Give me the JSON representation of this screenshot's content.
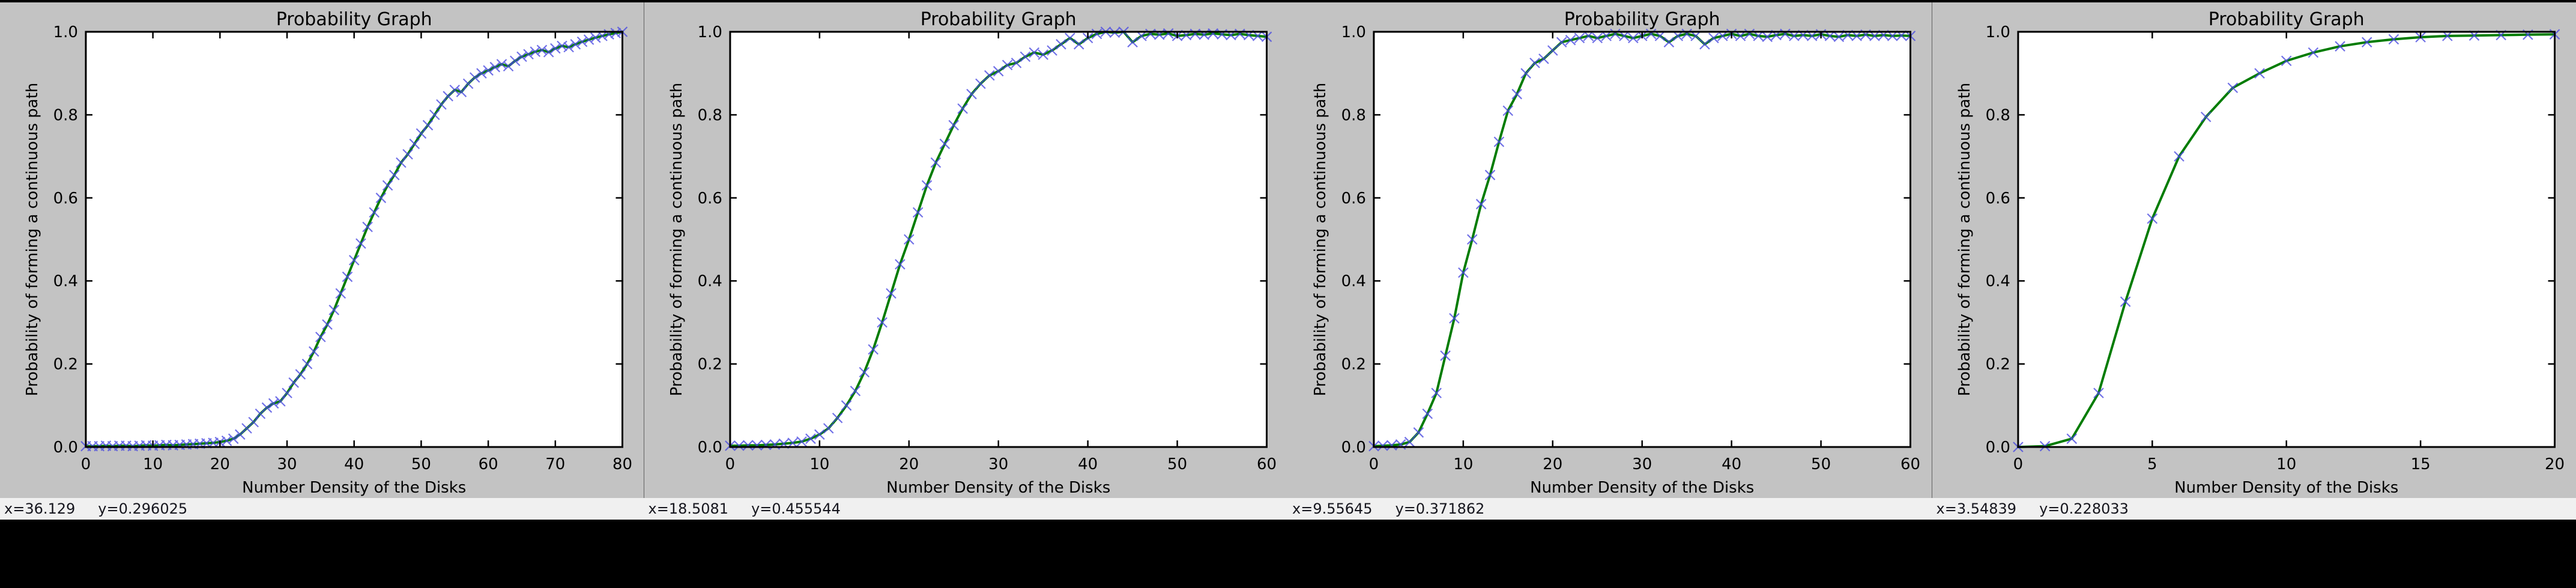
{
  "colors": {
    "figure_bg": "#c3c3c3",
    "plot_bg": "#ffffff",
    "axis": "#000000",
    "text": "#000000",
    "status_bg": "#f0f0f0",
    "status_text": "#15151d",
    "desktop_bg": "#000000"
  },
  "chart_data": [
    {
      "type": "line",
      "title": "Probability Graph",
      "xlabel": "Number Density of the Disks",
      "ylabel": "Probability of forming a continuous path",
      "xlim": [
        0,
        80
      ],
      "ylim": [
        0.0,
        1.0
      ],
      "xticks": [
        0,
        10,
        20,
        30,
        40,
        50,
        60,
        70,
        80
      ],
      "xticklabels": [
        "0",
        "10",
        "20",
        "30",
        "40",
        "50",
        "60",
        "70",
        "80"
      ],
      "yticks": [
        0.0,
        0.2,
        0.4,
        0.6,
        0.8,
        1.0
      ],
      "yticklabels": [
        "0.0",
        "0.2",
        "0.4",
        "0.6",
        "0.8",
        "1.0"
      ],
      "legend": "none",
      "grid": false,
      "line_color": "#007c00",
      "marker": "x",
      "marker_color": "#4848e0",
      "x_start": 0,
      "x_step": 1,
      "y": [
        0.002,
        0.002,
        0.002,
        0.003,
        0.002,
        0.003,
        0.003,
        0.002,
        0.003,
        0.004,
        0.003,
        0.004,
        0.005,
        0.004,
        0.005,
        0.006,
        0.007,
        0.008,
        0.009,
        0.01,
        0.012,
        0.015,
        0.02,
        0.03,
        0.045,
        0.06,
        0.08,
        0.095,
        0.105,
        0.11,
        0.13,
        0.155,
        0.175,
        0.2,
        0.23,
        0.265,
        0.295,
        0.33,
        0.37,
        0.41,
        0.45,
        0.49,
        0.53,
        0.565,
        0.6,
        0.63,
        0.655,
        0.685,
        0.705,
        0.73,
        0.755,
        0.775,
        0.8,
        0.825,
        0.845,
        0.86,
        0.855,
        0.875,
        0.89,
        0.9,
        0.907,
        0.915,
        0.922,
        0.917,
        0.93,
        0.94,
        0.946,
        0.952,
        0.956,
        0.951,
        0.96,
        0.966,
        0.963,
        0.97,
        0.976,
        0.981,
        0.986,
        0.99,
        0.994,
        0.997,
        1.0
      ],
      "status": {
        "x": "x=36.129",
        "y": "y=0.296025"
      }
    },
    {
      "type": "line",
      "title": "Probability Graph",
      "xlabel": "Number Density of the Disks",
      "ylabel": "Probability of forming a continuous path",
      "xlim": [
        0,
        60
      ],
      "ylim": [
        0.0,
        1.0
      ],
      "xticks": [
        0,
        10,
        20,
        30,
        40,
        50,
        60
      ],
      "xticklabels": [
        "0",
        "10",
        "20",
        "30",
        "40",
        "50",
        "60"
      ],
      "yticks": [
        0.0,
        0.2,
        0.4,
        0.6,
        0.8,
        1.0
      ],
      "yticklabels": [
        "0.0",
        "0.2",
        "0.4",
        "0.6",
        "0.8",
        "1.0"
      ],
      "legend": "none",
      "grid": false,
      "line_color": "#007c00",
      "marker": "x",
      "marker_color": "#4848e0",
      "x_start": 0,
      "x_step": 1,
      "y": [
        0.003,
        0.003,
        0.004,
        0.004,
        0.005,
        0.006,
        0.008,
        0.01,
        0.013,
        0.02,
        0.03,
        0.045,
        0.07,
        0.1,
        0.135,
        0.18,
        0.235,
        0.3,
        0.37,
        0.44,
        0.5,
        0.565,
        0.63,
        0.685,
        0.73,
        0.775,
        0.815,
        0.85,
        0.875,
        0.895,
        0.905,
        0.92,
        0.925,
        0.94,
        0.95,
        0.945,
        0.955,
        0.97,
        0.985,
        0.97,
        0.985,
        0.995,
        1.0,
        0.998,
        1.0,
        0.975,
        0.99,
        0.995,
        0.993,
        0.996,
        0.99,
        0.992,
        0.995,
        0.993,
        0.996,
        0.994,
        0.992,
        0.995,
        0.992,
        0.99,
        0.988
      ],
      "status": {
        "x": "x=18.5081",
        "y": "y=0.455544"
      }
    },
    {
      "type": "line",
      "title": "Probability Graph",
      "xlabel": "Number Density of the Disks",
      "ylabel": "Probability of forming a continuous path",
      "xlim": [
        0,
        60
      ],
      "ylim": [
        0.0,
        1.0
      ],
      "xticks": [
        0,
        10,
        20,
        30,
        40,
        50,
        60
      ],
      "xticklabels": [
        "0",
        "10",
        "20",
        "30",
        "40",
        "50",
        "60"
      ],
      "yticks": [
        0.0,
        0.2,
        0.4,
        0.6,
        0.8,
        1.0
      ],
      "yticklabels": [
        "0.0",
        "0.2",
        "0.4",
        "0.6",
        "0.8",
        "1.0"
      ],
      "legend": "none",
      "grid": false,
      "line_color": "#007c00",
      "marker": "x",
      "marker_color": "#4848e0",
      "x_start": 0,
      "x_step": 1,
      "y": [
        0.002,
        0.003,
        0.004,
        0.006,
        0.012,
        0.035,
        0.08,
        0.13,
        0.22,
        0.31,
        0.42,
        0.5,
        0.585,
        0.655,
        0.735,
        0.81,
        0.85,
        0.9,
        0.925,
        0.935,
        0.955,
        0.975,
        0.98,
        0.985,
        0.99,
        0.985,
        0.99,
        0.995,
        0.99,
        0.985,
        0.99,
        0.995,
        0.99,
        0.975,
        0.99,
        0.995,
        0.99,
        0.97,
        0.985,
        0.99,
        0.995,
        0.99,
        0.995,
        0.99,
        0.988,
        0.992,
        0.995,
        0.99,
        0.992,
        0.99,
        0.994,
        0.99,
        0.988,
        0.992,
        0.99,
        0.993,
        0.99,
        0.992,
        0.99,
        0.991,
        0.99
      ],
      "status": {
        "x": "x=9.55645",
        "y": "y=0.371862"
      }
    },
    {
      "type": "line",
      "title": "Probability Graph",
      "xlabel": "Number Density of the Disks",
      "ylabel": "Probability of forming a continuous path",
      "xlim": [
        0,
        20
      ],
      "ylim": [
        0.0,
        1.0
      ],
      "xticks": [
        0,
        5,
        10,
        15,
        20
      ],
      "xticklabels": [
        "0",
        "5",
        "10",
        "15",
        "20"
      ],
      "yticks": [
        0.0,
        0.2,
        0.4,
        0.6,
        0.8,
        1.0
      ],
      "yticklabels": [
        "0.0",
        "0.2",
        "0.4",
        "0.6",
        "0.8",
        "1.0"
      ],
      "legend": "none",
      "grid": false,
      "line_color": "#007c00",
      "marker": "x",
      "marker_color": "#4848e0",
      "x_start": 0,
      "x_step": 1,
      "y": [
        0.0,
        0.002,
        0.02,
        0.13,
        0.35,
        0.55,
        0.7,
        0.795,
        0.865,
        0.9,
        0.93,
        0.95,
        0.965,
        0.975,
        0.982,
        0.987,
        0.99,
        0.991,
        0.992,
        0.993,
        0.994
      ],
      "status": {
        "x": "x=3.54839",
        "y": "y=0.228033"
      }
    }
  ]
}
